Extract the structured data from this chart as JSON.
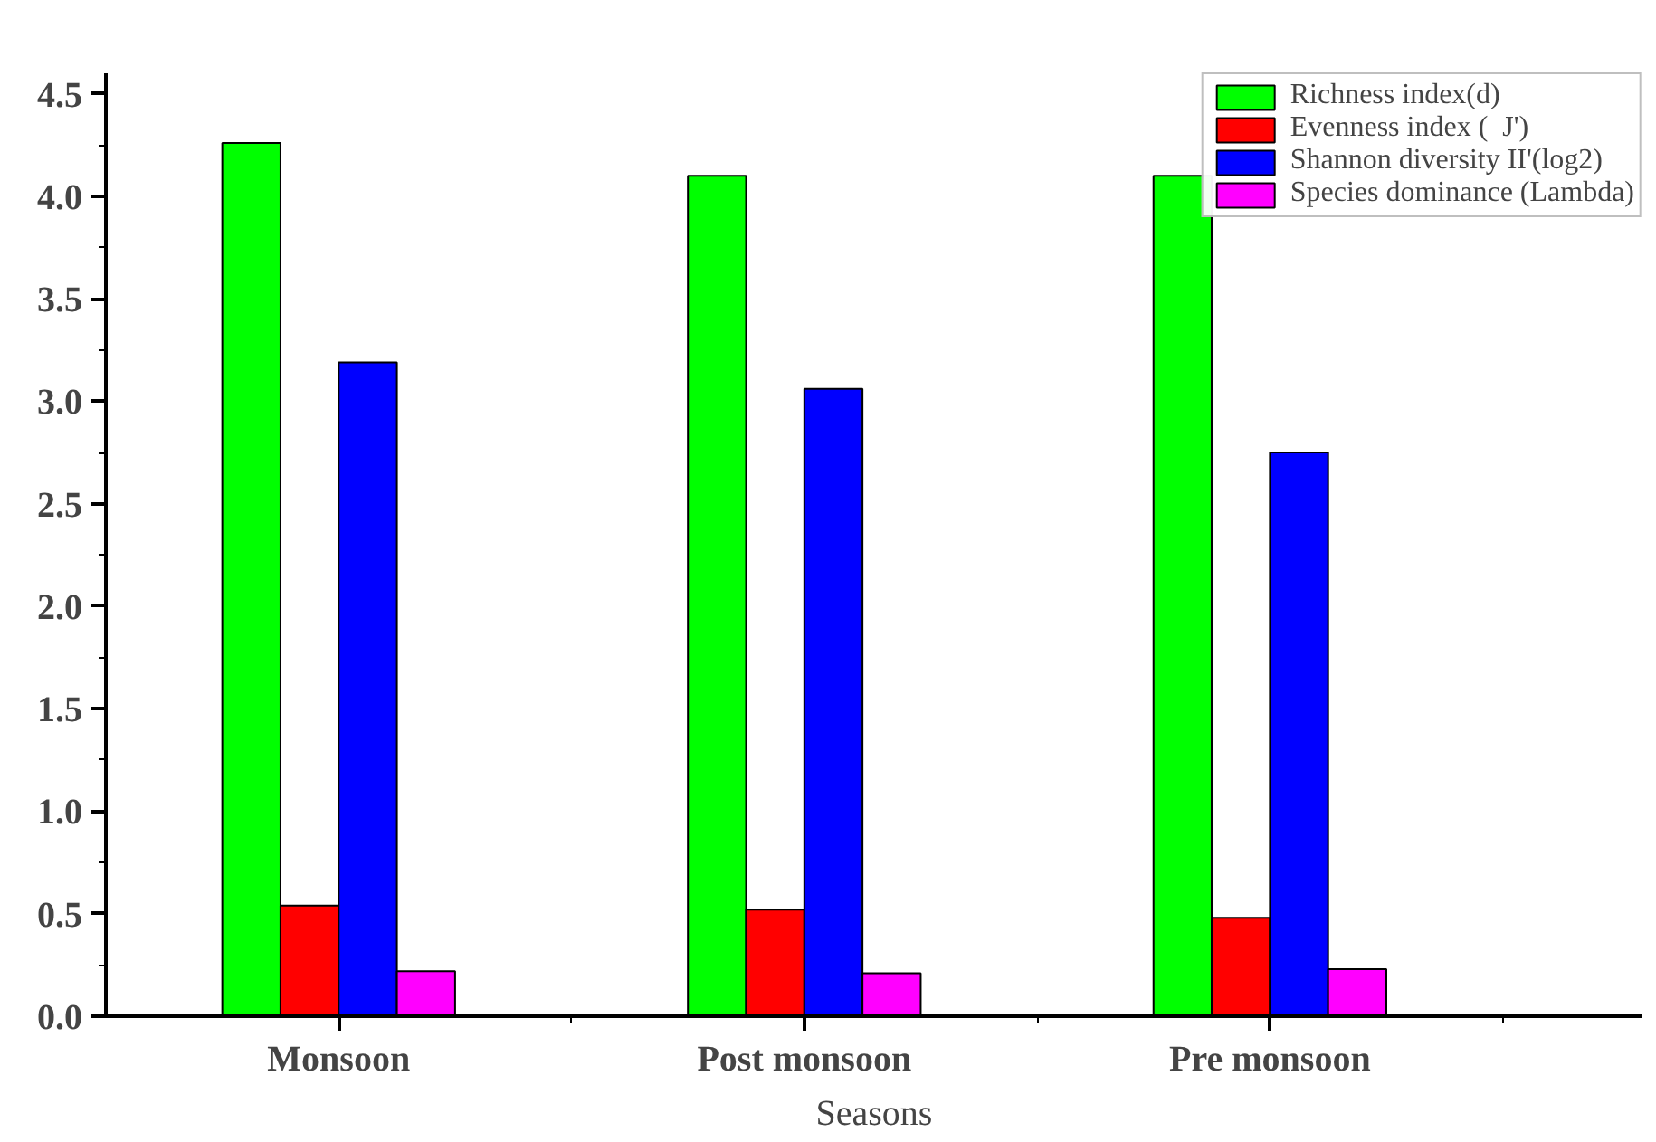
{
  "chart_data": {
    "type": "bar",
    "xlabel": "Seasons",
    "categories": [
      "Monsoon",
      "Post monsoon",
      "Pre monsoon"
    ],
    "series": [
      {
        "name": "Richness index(d)",
        "color": "#00ff00",
        "values": [
          4.26,
          4.1,
          4.1
        ]
      },
      {
        "name": "Evenness index (  J')",
        "color": "#ff0000",
        "values": [
          0.54,
          0.52,
          0.48
        ]
      },
      {
        "name": "Shannon diversity II'(log2)",
        "color": "#0000ff",
        "values": [
          3.19,
          3.06,
          2.75
        ]
      },
      {
        "name": "Species dominance (Lambda)",
        "color": "#ff00ff",
        "values": [
          0.22,
          0.21,
          0.23
        ]
      }
    ],
    "ylim": [
      0,
      4.6
    ],
    "yticks": [
      {
        "value": 0,
        "label": "0.0"
      },
      {
        "value": 0.5,
        "label": "0.5"
      },
      {
        "value": 1,
        "label": "1.0"
      },
      {
        "value": 1.5,
        "label": "1.5"
      },
      {
        "value": 2,
        "label": "2.0"
      },
      {
        "value": 2.5,
        "label": "2.5"
      },
      {
        "value": 3,
        "label": "3.0"
      },
      {
        "value": 3.5,
        "label": "3.5"
      },
      {
        "value": 4,
        "label": "4.0"
      },
      {
        "value": 4.5,
        "label": "4.5"
      }
    ],
    "grid": false,
    "legend": "top right"
  }
}
